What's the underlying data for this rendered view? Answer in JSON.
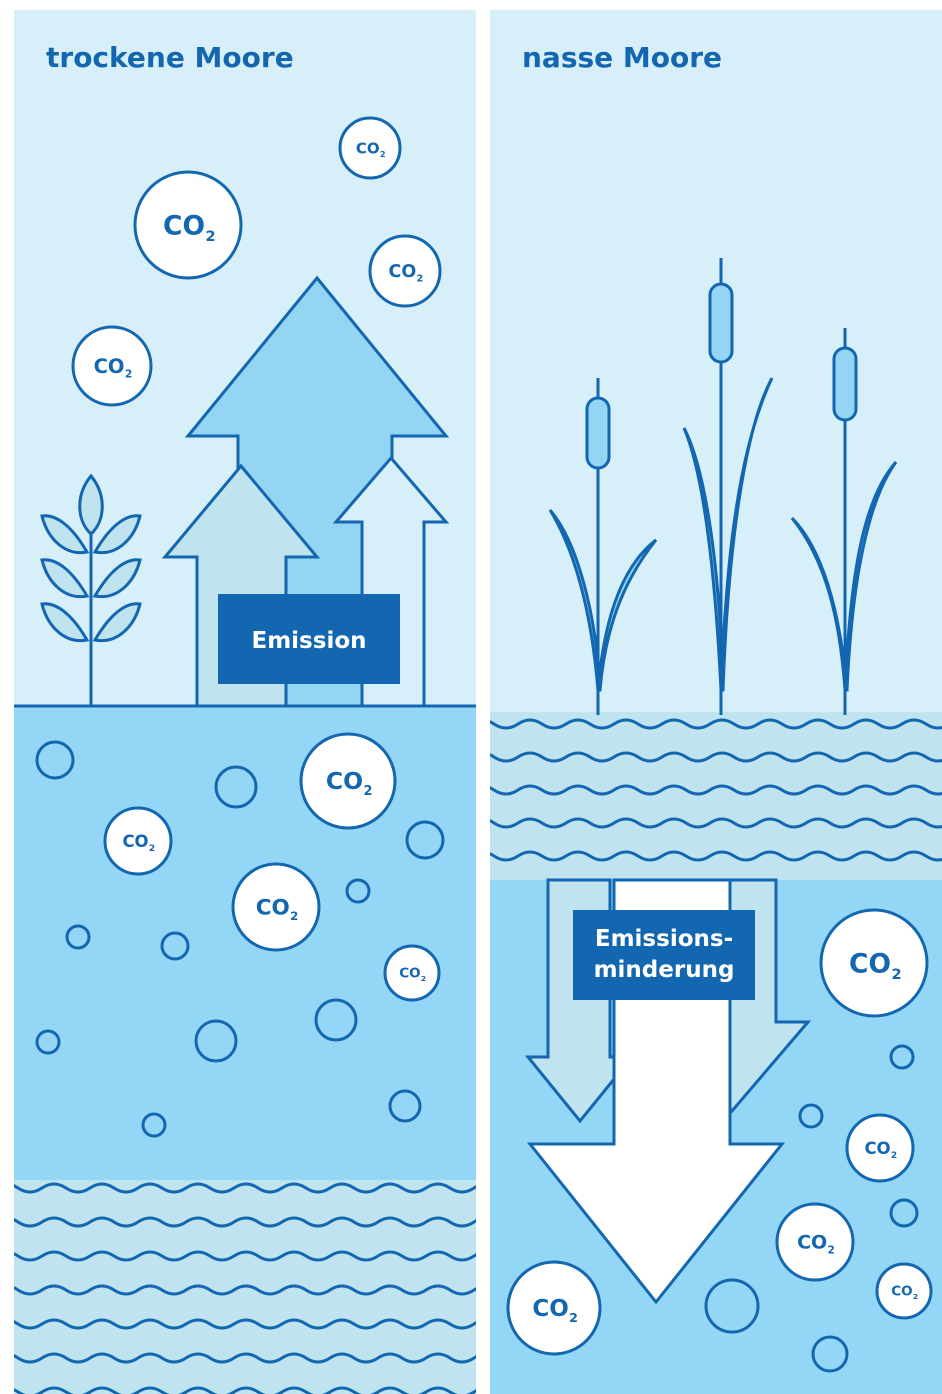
{
  "panels": {
    "left": {
      "title": "trockene Moore",
      "label": "Emission"
    },
    "right": {
      "title": "nasse Moore",
      "label_line1": "Emissions-",
      "label_line2": "minderung"
    }
  },
  "molecule": {
    "main": "CO",
    "sub": "2"
  },
  "colors": {
    "sky": "#d7eff8",
    "soil": "#94d6f5",
    "line": "#1366b0",
    "arrow_fill": "#94d5f4",
    "arrow_light": "#bfe3ef",
    "box": "#1366b0"
  }
}
